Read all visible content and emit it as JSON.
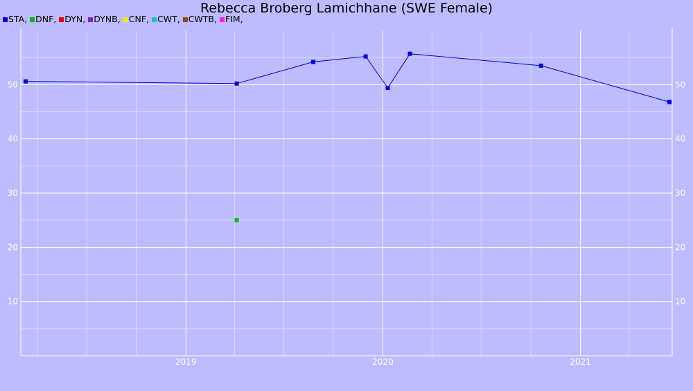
{
  "chart_data": {
    "type": "line",
    "title": "Rebecca Broberg Lamichhane (SWE Female)",
    "xlabel": "",
    "ylabel": "",
    "x_range": [
      "2018-03-01",
      "2021-06-20"
    ],
    "ylim": [
      0,
      60
    ],
    "y_ticks": [
      10,
      20,
      30,
      40,
      50
    ],
    "x_ticks": [
      {
        "label": "2019",
        "date": "2019-01-01"
      },
      {
        "label": "2020",
        "date": "2020-01-01"
      },
      {
        "label": "2021",
        "date": "2021-01-01"
      }
    ],
    "grid": true,
    "legend_position": "top-left",
    "legend": [
      {
        "name": "STA",
        "color": "#0000dd"
      },
      {
        "name": "DNF",
        "color": "#00bb00"
      },
      {
        "name": "DYN",
        "color": "#ee0000"
      },
      {
        "name": "DYNB",
        "color": "#7722dd"
      },
      {
        "name": "CNF",
        "color": "#eeee00"
      },
      {
        "name": "CWT",
        "color": "#22bbdd"
      },
      {
        "name": "CWTB",
        "color": "#994411"
      },
      {
        "name": "FIM",
        "color": "#ee22ee"
      }
    ],
    "series": [
      {
        "name": "STA",
        "color": "#0000dd",
        "points": [
          {
            "x": "2018-03-10",
            "y": 50.6
          },
          {
            "x": "2019-04-05",
            "y": 50.2
          },
          {
            "x": "2019-08-25",
            "y": 54.2
          },
          {
            "x": "2019-11-30",
            "y": 55.2
          },
          {
            "x": "2020-01-10",
            "y": 49.4
          },
          {
            "x": "2020-02-20",
            "y": 55.7
          },
          {
            "x": "2020-10-20",
            "y": 53.5
          },
          {
            "x": "2021-06-15",
            "y": 46.8
          }
        ]
      },
      {
        "name": "DNF",
        "color": "#00bb00",
        "points": [
          {
            "x": "2019-04-05",
            "y": 25.0
          }
        ]
      }
    ]
  }
}
